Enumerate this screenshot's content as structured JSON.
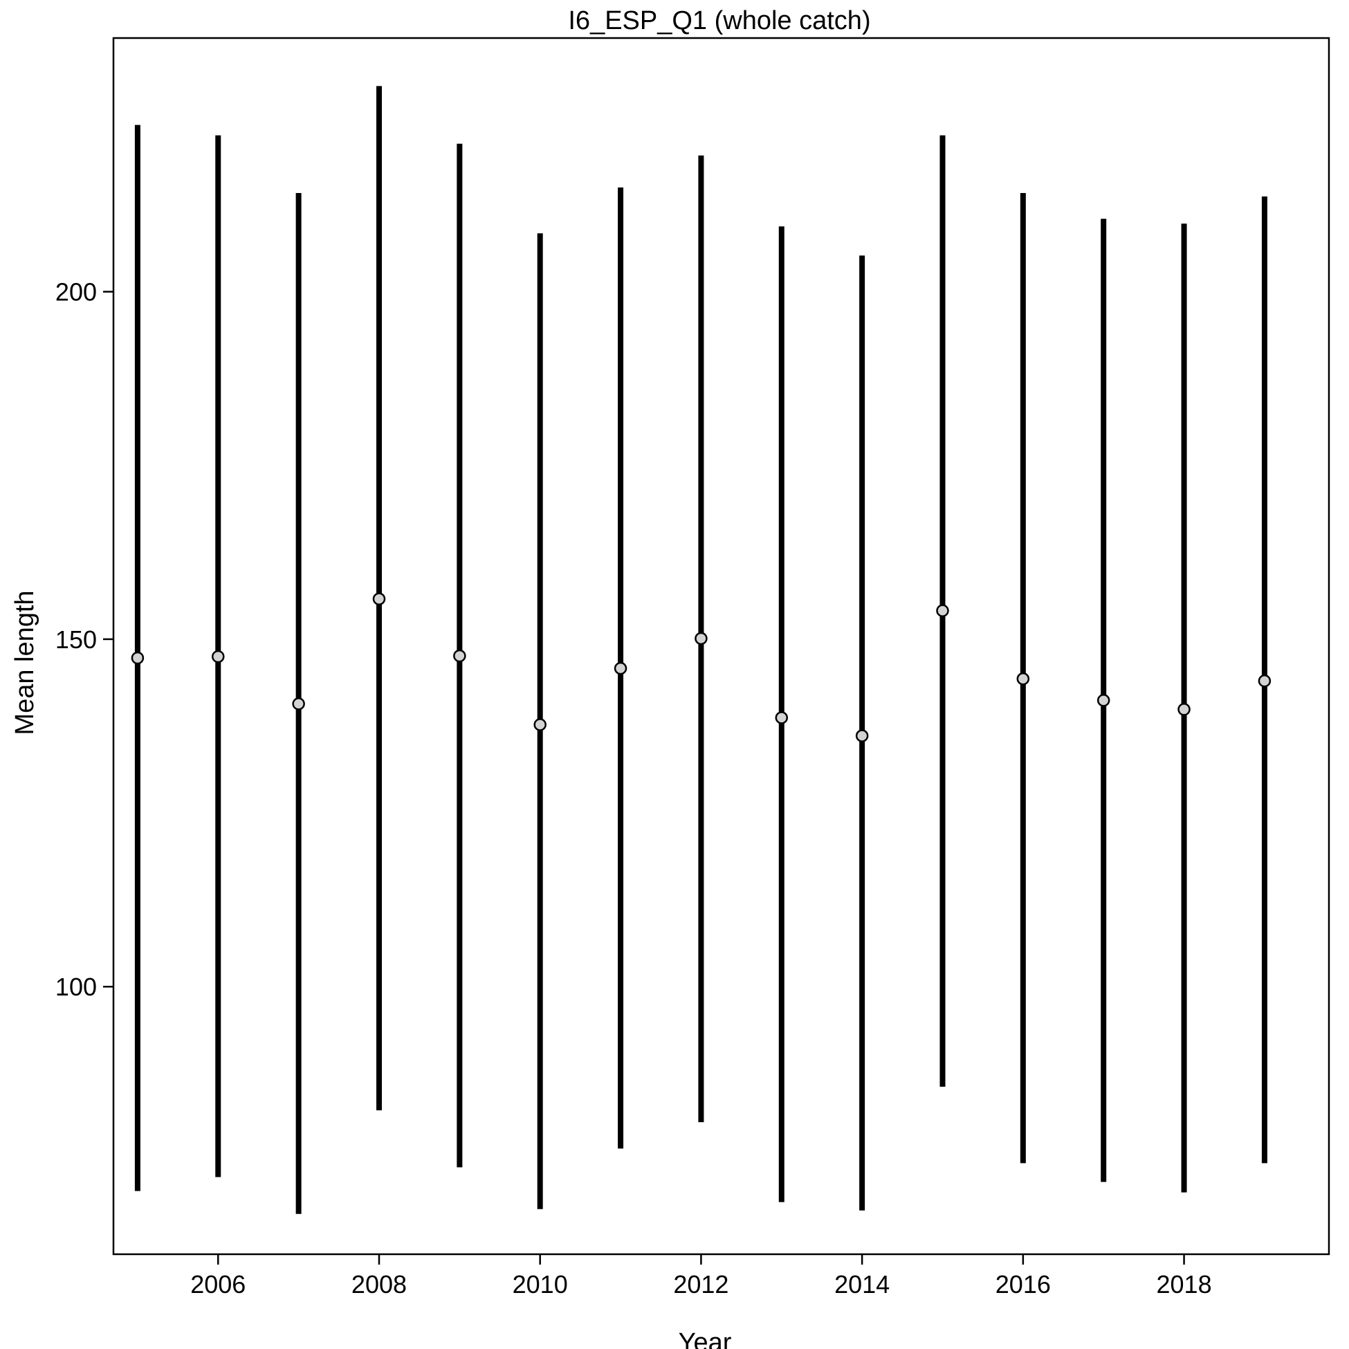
{
  "chart_data": {
    "type": "scatter",
    "title": "I6_ESP_Q1 (whole catch)",
    "xlabel": "Year",
    "ylabel": "Mean length",
    "xlim": [
      2004.7,
      2019.8
    ],
    "ylim": [
      61.5,
      236.5
    ],
    "x_ticks": [
      2006,
      2008,
      2010,
      2012,
      2014,
      2016,
      2018
    ],
    "y_ticks": [
      100,
      150,
      200
    ],
    "grid": false,
    "legend": "none",
    "series": [
      {
        "x": [
          2005,
          2006,
          2007,
          2008,
          2009,
          2010,
          2011,
          2012,
          2013,
          2014,
          2015,
          2016,
          2017,
          2018,
          2019
        ],
        "y": [
          147.3,
          147.5,
          140.7,
          155.8,
          147.6,
          137.7,
          145.8,
          150.1,
          138.7,
          136.1,
          154.1,
          144.3,
          141.2,
          139.9,
          144.0
        ],
        "lower": [
          70.6,
          72.6,
          67.3,
          82.2,
          74.0,
          68.0,
          76.7,
          80.5,
          69.0,
          67.8,
          85.6,
          74.6,
          71.9,
          70.4,
          74.6
        ],
        "upper": [
          224.0,
          222.5,
          214.2,
          229.6,
          221.3,
          208.4,
          215.0,
          219.6,
          209.4,
          205.2,
          222.5,
          214.2,
          210.5,
          209.8,
          213.7
        ]
      }
    ],
    "colors": {
      "line": "#000000",
      "point_fill": "#d3d3d3",
      "point_stroke": "#000000"
    }
  }
}
